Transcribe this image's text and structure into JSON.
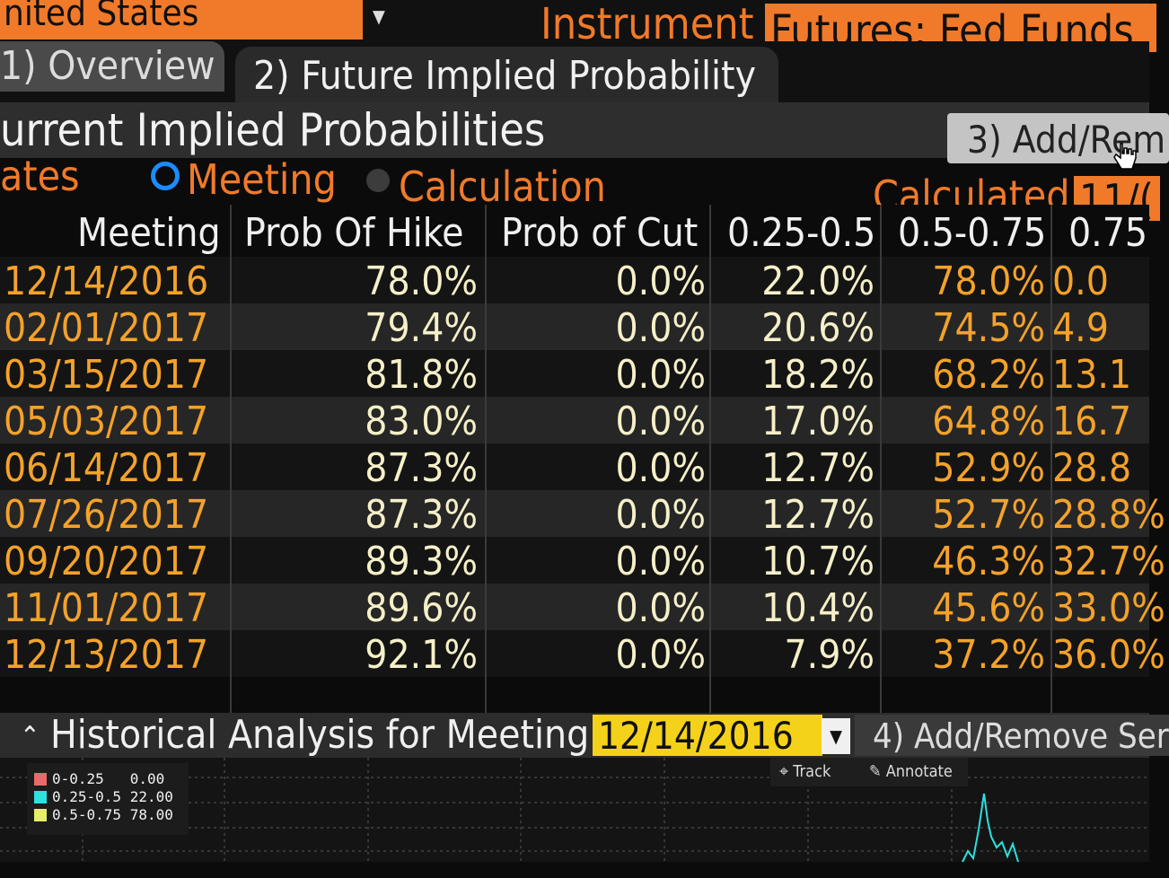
{
  "header": {
    "country": "nited States",
    "instrument_label": "Instrument",
    "instrument_value": "Futures: Fed Funds"
  },
  "tabs": [
    {
      "label": "1) Overview"
    },
    {
      "label": "2) Future Implied Probability"
    }
  ],
  "section": {
    "title": "urrent Implied Probabilities",
    "button": "3) Add/Rem"
  },
  "dates": {
    "label": "ates",
    "options": [
      "Meeting",
      "Calculation"
    ],
    "selected": "Meeting",
    "calculated_label": "Calculated",
    "calculated_value": "11/("
  },
  "table": {
    "headers": [
      "Meeting",
      "Prob Of Hike",
      "Prob of Cut",
      "0.25-0.5",
      "0.5-0.75",
      "0.75"
    ],
    "rows": [
      [
        "12/14/2016",
        "78.0%",
        "0.0%",
        "22.0%",
        "78.0%",
        "0.0"
      ],
      [
        "02/01/2017",
        "79.4%",
        "0.0%",
        "20.6%",
        "74.5%",
        "4.9"
      ],
      [
        "03/15/2017",
        "81.8%",
        "0.0%",
        "18.2%",
        "68.2%",
        "13.1"
      ],
      [
        "05/03/2017",
        "83.0%",
        "0.0%",
        "17.0%",
        "64.8%",
        "16.7"
      ],
      [
        "06/14/2017",
        "87.3%",
        "0.0%",
        "12.7%",
        "52.9%",
        "28.8"
      ],
      [
        "07/26/2017",
        "87.3%",
        "0.0%",
        "12.7%",
        "52.7%",
        "28.8%"
      ],
      [
        "09/20/2017",
        "89.3%",
        "0.0%",
        "10.7%",
        "46.3%",
        "32.7%"
      ],
      [
        "11/01/2017",
        "89.6%",
        "0.0%",
        "10.4%",
        "45.6%",
        "33.0%"
      ],
      [
        "12/13/2017",
        "92.1%",
        "0.0%",
        "7.9%",
        "37.2%",
        "36.0%"
      ]
    ]
  },
  "historical": {
    "title": "Historical Analysis for Meeting",
    "date": "12/14/2016",
    "button": "4) Add/Remove Ser",
    "track": "Track",
    "annotate": "Annotate",
    "legend": [
      {
        "label": "0-0.25",
        "value": "0.00",
        "color": "#e86a6a"
      },
      {
        "label": "0.25-0.5",
        "value": "22.00",
        "color": "#2ee0e0"
      },
      {
        "label": "0.5-0.75",
        "value": "78.00",
        "color": "#e6ee6a"
      }
    ]
  },
  "colors": {
    "accent_orange": "#f07a2a",
    "date_yellow": "#f5d21a",
    "selected_radio": "#1a8cff",
    "chart_line": "#2ee0e0"
  }
}
